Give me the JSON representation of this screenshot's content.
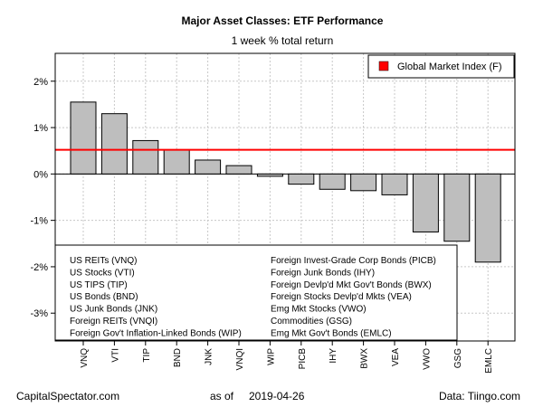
{
  "chart_data": {
    "type": "bar",
    "title": "Major Asset Classes: ETF Performance",
    "subtitle": "1 week % total return",
    "categories": [
      "VNQ",
      "VTI",
      "TIP",
      "BND",
      "JNK",
      "VNQI",
      "WIP",
      "PICB",
      "IHY",
      "BWX",
      "VEA",
      "VWO",
      "GSG",
      "EMLC"
    ],
    "values": [
      1.55,
      1.3,
      0.72,
      0.52,
      0.3,
      0.18,
      -0.05,
      -0.22,
      -0.33,
      -0.36,
      -0.45,
      -1.25,
      -1.45,
      -1.9
    ],
    "ylim": [
      -3.6,
      2.6
    ],
    "y_ticks": [
      2,
      1,
      0,
      -1,
      -2,
      -3
    ],
    "y_tick_labels": [
      "2%",
      "1%",
      "0%",
      "-1%",
      "-2%",
      "-3%"
    ],
    "reference_line": {
      "value": 0.52,
      "label": "Global Market Index (F)",
      "color": "#ff0000"
    },
    "bar_color": "#bebebe",
    "grid": true,
    "legend_position": "top-right"
  },
  "key_left": [
    "US REITs (VNQ)",
    "US Stocks (VTI)",
    "US TIPS (TIP)",
    "US Bonds (BND)",
    "US Junk Bonds (JNK)",
    "Foreign REITs (VNQI)",
    "Foreign Gov't Inflation-Linked Bonds (WIP)"
  ],
  "key_right": [
    "Foreign Invest-Grade Corp Bonds (PICB)",
    "Foreign Junk Bonds (IHY)",
    "Foreign Devlp'd Mkt Gov't Bonds (BWX)",
    "Foreign Stocks Devlp'd Mkts (VEA)",
    "Emg Mkt Stocks (VWO)",
    "Commodities (GSG)",
    "Emg Mkt Gov't Bonds (EMLC)"
  ],
  "footer": {
    "left": "CapitalSpectator.com",
    "as_of": "as of",
    "date": "2019-04-26",
    "right": "Data: Tiingo.com"
  }
}
